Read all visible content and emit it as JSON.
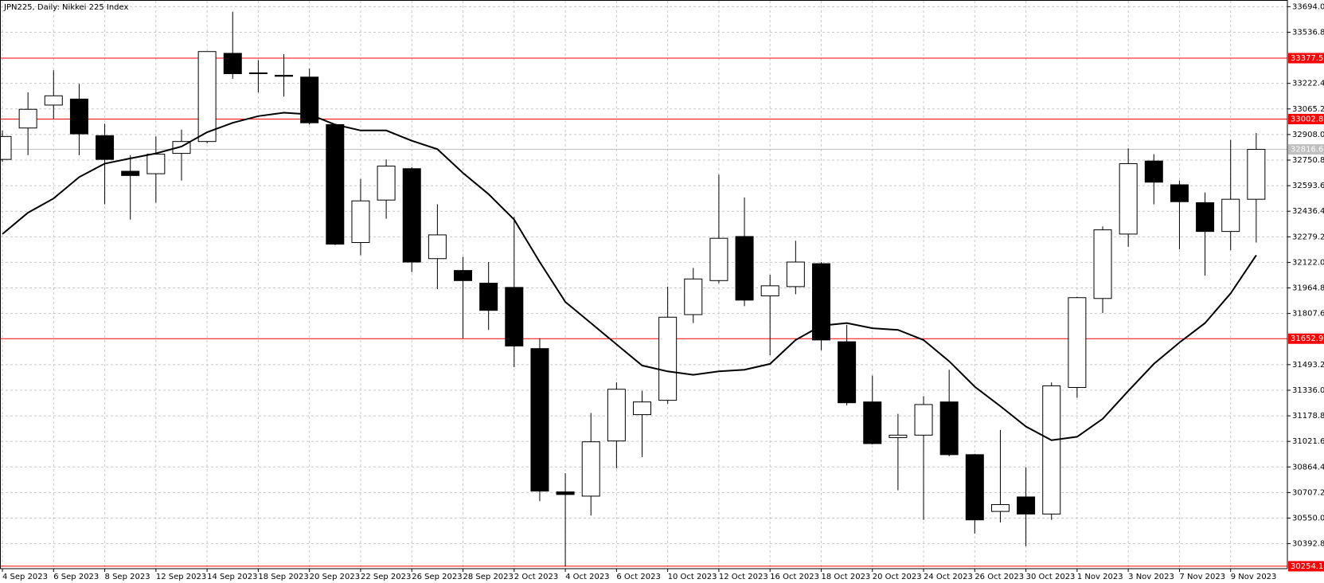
{
  "chart_data": {
    "type": "candlestick",
    "title": "JPN225, Daily: Nikkei 225 Index",
    "categories": [
      "4 Sep 2023",
      null,
      "6 Sep 2023",
      null,
      "8 Sep 2023",
      null,
      "12 Sep 2023",
      null,
      "14 Sep 2023",
      null,
      "18 Sep 2023",
      null,
      "20 Sep 2023",
      null,
      "22 Sep 2023",
      null,
      "26 Sep 2023",
      null,
      "28 Sep 2023",
      null,
      "2 Oct 2023",
      null,
      "4 Oct 2023",
      null,
      "6 Oct 2023",
      null,
      "10 Oct 2023",
      null,
      "12 Oct 2023",
      null,
      "16 Oct 2023",
      null,
      "18 Oct 2023",
      null,
      "20 Oct 2023",
      null,
      "24 Oct 2023",
      null,
      "26 Oct 2023",
      null,
      "30 Oct 2023",
      null,
      "1 Nov 2023",
      null,
      "3 Nov 2023",
      null,
      "7 Nov 2023",
      null,
      "9 Nov 2023",
      null
    ],
    "open": [
      32755,
      32948,
      33089,
      33126,
      32901,
      32682,
      32667,
      32792,
      32865,
      33407,
      33287,
      33272,
      33261,
      32969,
      32244,
      32505,
      32698,
      32145,
      32072,
      31994,
      31968,
      31592,
      30711,
      30685,
      31024,
      31186,
      31274,
      31801,
      32010,
      32281,
      31916,
      31973,
      32114,
      31634,
      31264,
      31045,
      31060,
      31264,
      30940,
      30591,
      30680,
      30575,
      31353,
      31900,
      32296,
      32745,
      32599,
      32489,
      32312,
      32510
    ],
    "high": [
      32933,
      33167,
      33303,
      33219,
      32974,
      32781,
      32896,
      32938,
      33418,
      33663,
      33365,
      33402,
      33313,
      32974,
      32635,
      32755,
      32708,
      32479,
      32156,
      32124,
      32401,
      31655,
      30826,
      31196,
      31384,
      31332,
      31973,
      32088,
      32661,
      32521,
      32046,
      32255,
      32124,
      31738,
      31426,
      31191,
      31300,
      31462,
      30945,
      31092,
      30862,
      31384,
      31911,
      32343,
      32823,
      32787,
      32625,
      32552,
      32875,
      32917
    ],
    "low": [
      32740,
      32781,
      33000,
      32781,
      32479,
      32385,
      32489,
      32625,
      32854,
      33251,
      33167,
      33141,
      32969,
      32229,
      32166,
      32390,
      32062,
      31957,
      31655,
      31707,
      31478,
      30654,
      30254.1,
      30565,
      30857,
      30925,
      31253,
      31749,
      31994,
      31853,
      31551,
      31926,
      31582,
      31243,
      31003,
      30721,
      30539,
      30930,
      30455,
      30523,
      30377,
      30539,
      31290,
      31811,
      32218,
      32479,
      32203,
      32041,
      32197,
      32244
    ],
    "close": [
      32896,
      33063,
      33146,
      32912,
      32755,
      32656,
      32787,
      32865,
      33418,
      33282,
      33282,
      33266,
      32980,
      32234,
      32500,
      32714,
      32124,
      32291,
      32010,
      31827,
      31608,
      30716,
      30695,
      31019,
      31342,
      31264,
      31785,
      32020,
      32270,
      31890,
      31978,
      32124,
      31645,
      31259,
      31008,
      31060,
      31248,
      30940,
      30539,
      30633,
      30575,
      31363,
      31905,
      32322,
      32729,
      32615,
      32495,
      32312,
      32510,
      32816.6
    ],
    "moving_average": {
      "color": "#000000",
      "values": [
        32296,
        32427,
        32515,
        32646,
        32729,
        32761,
        32792,
        32834,
        32922,
        32980,
        33021,
        33042,
        33032,
        32969,
        32933,
        32933,
        32870,
        32818,
        32672,
        32541,
        32385,
        32124,
        31879,
        31749,
        31618,
        31488,
        31452,
        31431,
        31452,
        31462,
        31498,
        31645,
        31733,
        31749,
        31717,
        31707,
        31645,
        31514,
        31358,
        31238,
        31113,
        31029,
        31050,
        31160,
        31332,
        31498,
        31629,
        31749,
        31931,
        32166
      ]
    },
    "up_color": "#ffffff",
    "down_color": "#000000",
    "levels": [
      33377.5,
      33002.8,
      31652.9,
      30254.1
    ],
    "level_color": "#ff0000",
    "last_price_color": "#c0c0c0",
    "ylim": [
      30244,
      33730
    ],
    "yticks": [
      {
        "value": 33694,
        "label": "33694.0"
      },
      33536.8,
      33222.4,
      33065.2,
      {
        "value": 32908,
        "label": "32908.0"
      },
      32750.8,
      32593.6,
      32436.4,
      32279.2,
      {
        "value": 32122,
        "label": "32122.0"
      },
      31964.8,
      31807.6,
      31493.2,
      {
        "value": 31336,
        "label": "31336.0"
      },
      31178.8,
      31021.6,
      30864.4,
      30707.2,
      {
        "value": 30550,
        "label": "30550.0"
      },
      30392.8
    ],
    "grid": true
  }
}
